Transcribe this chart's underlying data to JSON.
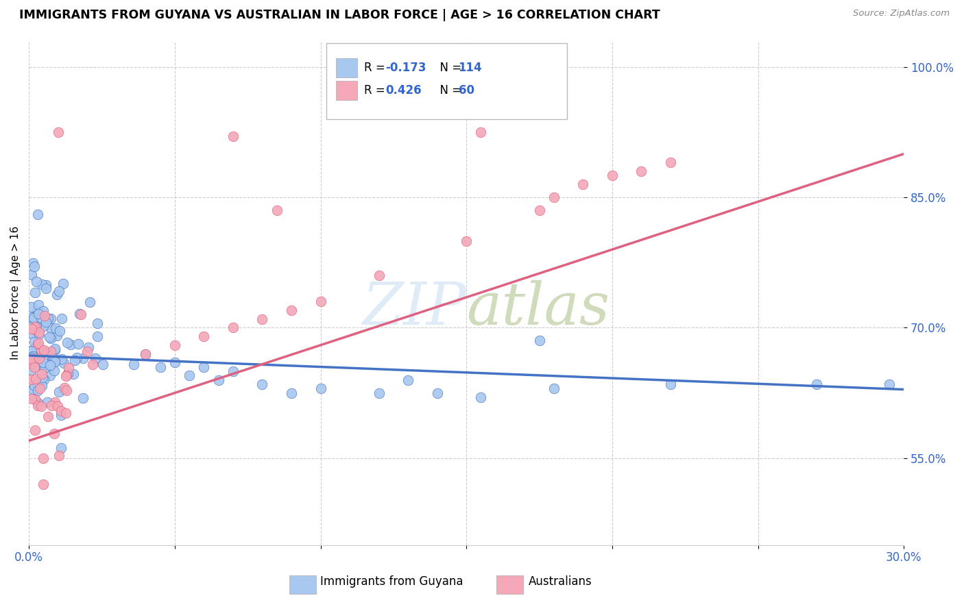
{
  "title": "IMMIGRANTS FROM GUYANA VS AUSTRALIAN IN LABOR FORCE | AGE > 16 CORRELATION CHART",
  "source": "Source: ZipAtlas.com",
  "ylabel": "In Labor Force | Age > 16",
  "xlim": [
    0.0,
    0.3
  ],
  "ylim": [
    0.45,
    1.03
  ],
  "yticks": [
    0.55,
    0.7,
    0.85,
    1.0
  ],
  "ytick_labels": [
    "55.0%",
    "70.0%",
    "85.0%",
    "100.0%"
  ],
  "xticks": [
    0.0,
    0.05,
    0.1,
    0.15,
    0.2,
    0.25,
    0.3
  ],
  "xtick_labels": [
    "0.0%",
    "",
    "",
    "",
    "",
    "",
    "30.0%"
  ],
  "color_blue": "#A8C8F0",
  "color_pink": "#F4A8B8",
  "color_blue_line": "#4472C4",
  "color_pink_line": "#E06080",
  "color_text_blue": "#3366CC",
  "watermark_color": "#C0D8F0",
  "watermark_alpha": 0.5
}
